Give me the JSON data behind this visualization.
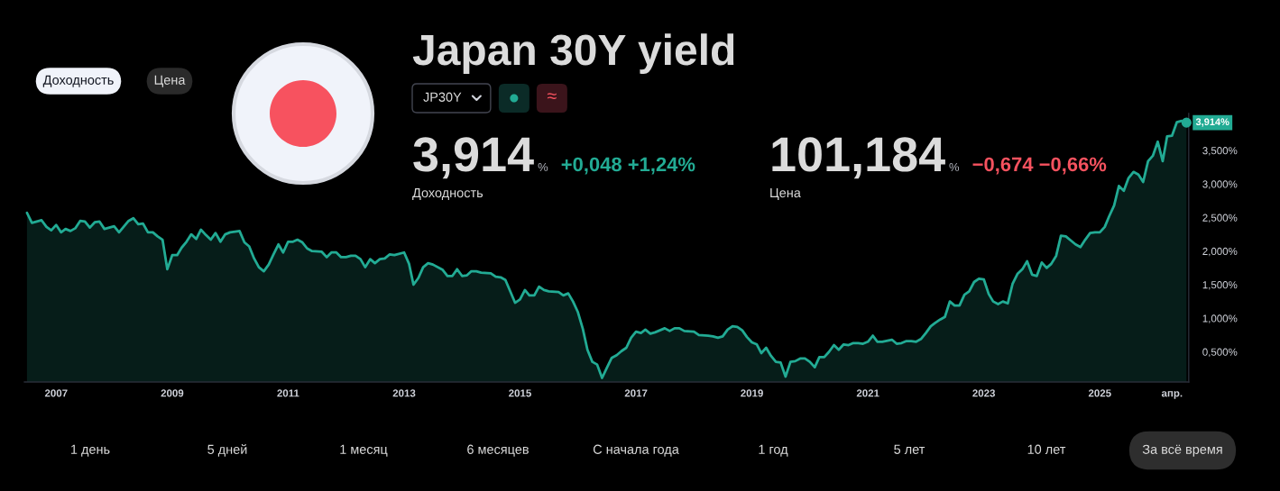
{
  "chart_data": {
    "type": "area",
    "title": "Japan 30Y yield",
    "color": "#22ab94",
    "x": [
      "2006-07",
      "2006-08",
      "2006-10",
      "2006-11",
      "2006-12",
      "2007-01",
      "2007-02",
      "2007-03",
      "2007-04",
      "2007-05",
      "2007-06",
      "2007-07",
      "2007-08",
      "2007-09",
      "2007-10",
      "2007-11",
      "2008-01",
      "2008-02",
      "2008-04",
      "2008-05",
      "2008-06",
      "2008-07",
      "2008-08",
      "2008-09",
      "2008-10",
      "2008-11",
      "2008-12",
      "2009-01",
      "2009-02",
      "2009-03",
      "2009-04",
      "2009-05",
      "2009-06",
      "2009-07",
      "2009-08",
      "2009-09",
      "2009-10",
      "2009-11",
      "2009-12",
      "2010-01",
      "2010-02",
      "2010-03",
      "2010-04",
      "2010-05",
      "2010-06",
      "2010-07",
      "2010-08",
      "2010-09",
      "2010-10",
      "2010-11",
      "2010-12",
      "2011-01",
      "2011-02",
      "2011-03",
      "2011-04",
      "2011-05",
      "2011-06",
      "2011-08",
      "2011-09",
      "2011-10",
      "2011-11",
      "2011-12",
      "2012-01",
      "2012-02",
      "2012-03",
      "2012-04",
      "2012-05",
      "2012-06",
      "2012-07",
      "2012-08",
      "2012-09",
      "2012-10",
      "2012-11",
      "2013-01",
      "2013-02",
      "2013-03",
      "2013-04",
      "2013-05",
      "2013-06",
      "2013-07",
      "2013-09",
      "2013-10",
      "2013-11",
      "2013-12",
      "2014-01",
      "2014-02",
      "2014-03",
      "2014-04",
      "2014-05",
      "2014-07",
      "2014-08",
      "2014-09",
      "2014-10",
      "2014-11",
      "2014-12",
      "2015-01",
      "2015-02",
      "2015-03",
      "2015-04",
      "2015-05",
      "2015-06",
      "2015-07",
      "2015-09",
      "2015-10",
      "2015-11",
      "2015-12",
      "2016-01",
      "2016-02",
      "2016-03",
      "2016-04",
      "2016-05",
      "2016-06",
      "2016-07",
      "2016-08",
      "2016-09",
      "2016-10",
      "2016-11",
      "2016-12",
      "2017-01",
      "2017-02",
      "2017-03",
      "2017-04",
      "2017-05",
      "2017-07",
      "2017-08",
      "2017-09",
      "2017-10",
      "2017-11",
      "2018-01",
      "2018-02",
      "2018-04",
      "2018-05",
      "2018-06",
      "2018-07",
      "2018-08",
      "2018-09",
      "2018-10",
      "2018-11",
      "2018-12",
      "2019-01",
      "2019-02",
      "2019-03",
      "2019-04",
      "2019-05",
      "2019-06",
      "2019-07",
      "2019-08",
      "2019-09",
      "2019-10",
      "2019-11",
      "2019-12",
      "2020-01",
      "2020-02",
      "2020-03",
      "2020-04",
      "2020-05",
      "2020-06",
      "2020-07",
      "2020-08",
      "2020-09",
      "2020-10",
      "2020-11",
      "2020-12",
      "2021-01",
      "2021-02",
      "2021-03",
      "2021-04",
      "2021-06",
      "2021-07",
      "2021-08",
      "2021-09",
      "2021-10",
      "2021-11",
      "2021-12",
      "2022-01",
      "2022-02",
      "2022-03",
      "2022-04",
      "2022-05",
      "2022-06",
      "2022-07",
      "2022-08",
      "2022-09",
      "2022-10",
      "2022-11",
      "2022-12",
      "2023-01",
      "2023-02",
      "2023-03",
      "2023-04",
      "2023-05",
      "2023-06",
      "2023-07",
      "2023-08",
      "2023-09",
      "2023-10",
      "2023-11",
      "2023-12",
      "2024-01",
      "2024-02",
      "2024-03",
      "2024-04",
      "2024-05",
      "2024-06",
      "2024-07",
      "2024-08",
      "2024-09",
      "2024-10",
      "2024-11",
      "2024-12",
      "2025-01",
      "2025-02",
      "2025-03",
      "2025-04",
      "2025-05",
      "2025-06",
      "2025-07",
      "2025-08",
      "2025-09",
      "2025-10",
      "2025-11",
      "2025-12",
      "2026-01",
      "2026-02",
      "2026-03",
      "2026-04",
      "2026-05",
      "2026-06",
      "2026-07"
    ],
    "values": [
      2.57,
      2.42,
      2.46,
      2.36,
      2.31,
      2.39,
      2.28,
      2.33,
      2.3,
      2.34,
      2.45,
      2.44,
      2.35,
      2.43,
      2.44,
      2.33,
      2.37,
      2.28,
      2.45,
      2.49,
      2.4,
      2.41,
      2.28,
      2.28,
      2.22,
      2.17,
      1.73,
      1.94,
      1.94,
      2.05,
      2.14,
      2.25,
      2.18,
      2.32,
      2.24,
      2.17,
      2.27,
      2.14,
      2.25,
      2.28,
      2.29,
      2.3,
      2.13,
      2.07,
      1.89,
      1.76,
      1.7,
      1.8,
      1.95,
      2.1,
      1.98,
      2.14,
      2.14,
      2.17,
      2.13,
      2.04,
      2.0,
      1.99,
      1.91,
      1.98,
      1.98,
      1.91,
      1.91,
      1.93,
      1.93,
      1.88,
      1.76,
      1.88,
      1.82,
      1.88,
      1.89,
      1.95,
      1.94,
      1.98,
      1.81,
      1.5,
      1.6,
      1.76,
      1.82,
      1.8,
      1.72,
      1.63,
      1.63,
      1.73,
      1.63,
      1.64,
      1.7,
      1.7,
      1.68,
      1.67,
      1.62,
      1.61,
      1.57,
      1.4,
      1.23,
      1.28,
      1.42,
      1.34,
      1.34,
      1.47,
      1.42,
      1.4,
      1.39,
      1.34,
      1.37,
      1.25,
      1.09,
      0.84,
      0.53,
      0.35,
      0.31,
      0.11,
      0.26,
      0.41,
      0.45,
      0.51,
      0.56,
      0.71,
      0.8,
      0.78,
      0.83,
      0.77,
      0.79,
      0.85,
      0.81,
      0.85,
      0.85,
      0.81,
      0.8,
      0.75,
      0.74,
      0.73,
      0.71,
      0.73,
      0.83,
      0.88,
      0.87,
      0.82,
      0.72,
      0.64,
      0.61,
      0.48,
      0.56,
      0.44,
      0.35,
      0.34,
      0.13,
      0.35,
      0.36,
      0.4,
      0.4,
      0.35,
      0.27,
      0.42,
      0.42,
      0.5,
      0.6,
      0.53,
      0.61,
      0.6,
      0.63,
      0.63,
      0.62,
      0.65,
      0.74,
      0.65,
      0.65,
      0.68,
      0.62,
      0.63,
      0.66,
      0.66,
      0.65,
      0.69,
      0.78,
      0.88,
      0.93,
      0.98,
      1.02,
      1.25,
      1.19,
      1.19,
      1.35,
      1.4,
      1.54,
      1.59,
      1.58,
      1.36,
      1.25,
      1.21,
      1.25,
      1.22,
      1.51,
      1.66,
      1.73,
      1.85,
      1.65,
      1.63,
      1.83,
      1.75,
      1.81,
      1.93,
      2.23,
      2.22,
      2.16,
      2.1,
      2.06,
      2.17,
      2.27,
      2.28,
      2.28,
      2.36,
      2.52,
      2.68,
      2.97,
      2.9,
      3.09,
      3.18,
      3.14,
      3.03,
      3.34,
      3.42,
      3.63,
      3.34,
      3.71,
      3.72,
      3.92,
      3.94,
      3.914
    ],
    "xlim": [
      "2006-06-15",
      "2026-07-15"
    ],
    "xticks": [
      {
        "value": "2007",
        "label": "2007"
      },
      {
        "value": "2009",
        "label": "2009"
      },
      {
        "value": "2011",
        "label": "2011"
      },
      {
        "value": "2013",
        "label": "2013"
      },
      {
        "value": "2015",
        "label": "2015"
      },
      {
        "value": "2017",
        "label": "2017"
      },
      {
        "value": "2019",
        "label": "2019"
      },
      {
        "value": "2021",
        "label": "2021"
      },
      {
        "value": "2023",
        "label": "2023"
      },
      {
        "value": "2025",
        "label": "2025"
      },
      {
        "value": "2026-04",
        "label": "апр."
      }
    ],
    "ylim": [
      0.05,
      4.05
    ],
    "yticks": [
      {
        "value": 0.5,
        "label": "0,500%"
      },
      {
        "value": 1.0,
        "label": "1,000%"
      },
      {
        "value": 1.5,
        "label": "1,500%"
      },
      {
        "value": 2.0,
        "label": "2,000%"
      },
      {
        "value": 2.5,
        "label": "2,500%"
      },
      {
        "value": 3.0,
        "label": "3,000%"
      },
      {
        "value": 3.5,
        "label": "3,500%"
      }
    ],
    "annotations": [
      "Доходность",
      "Цена",
      "JP30Y",
      "≈",
      "3,914",
      "%",
      "+0,048 +1,24%",
      "Доходность",
      "101,184",
      "%",
      "−0,674 −0,66%",
      "Цена",
      "1 день",
      "5 дней",
      "1 месяц",
      "6 месяцев",
      "С начала года",
      "1 год",
      "5 лет",
      "10 лет",
      "За всё время",
      {
        "text": "3,914%",
        "x": "2026-07",
        "y": 3.914
      }
    ]
  }
}
